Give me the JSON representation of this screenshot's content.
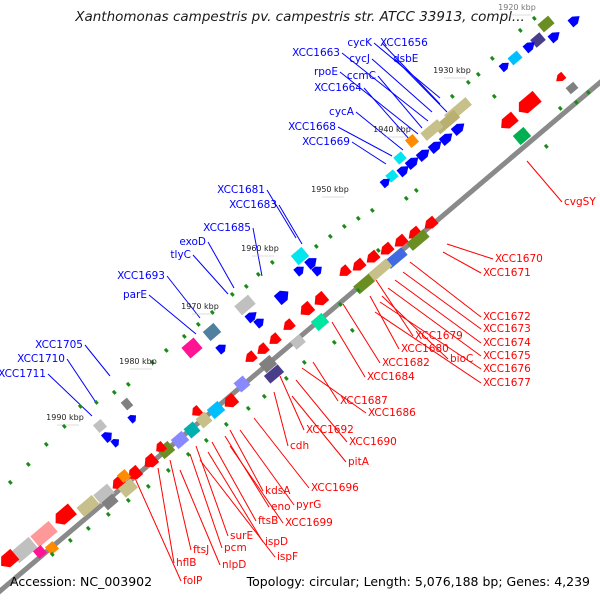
{
  "title": "Xanthomonas campestris pv. campestris str. ATCC 33913, compl...",
  "footer": {
    "accession": "Accession: NC_003902",
    "summary": "Topology: circular; Length: 5,076,188 bp; Genes: 4,239"
  },
  "colors": {
    "backbone": "#808080",
    "forward_label": "#0000ff",
    "reverse_label": "#ff0000",
    "forward_gene": "#0000ff",
    "reverse_gene": "#ff0000",
    "tick": "#1a8a1a"
  },
  "ticks": [
    "1920 kbp",
    "1930 kbp",
    "1940 kbp",
    "1950 kbp",
    "1960 kbp",
    "1970 kbp",
    "1980 kbp",
    "1990 kbp"
  ],
  "forward_labels": [
    "cycK",
    "XCC1656",
    "cycJ",
    "dsbE",
    "XCC1663",
    "ccmC",
    "rpoE",
    "XCC1664",
    "cycA",
    "XCC1668",
    "XCC1669",
    "XCC1681",
    "XCC1683",
    "XCC1685",
    "exoD",
    "tlyC",
    "XCC1693",
    "parE",
    "XCC1705",
    "XCC1710",
    "XCC1711"
  ],
  "reverse_labels": [
    "cvgSY",
    "XCC1670",
    "XCC1671",
    "XCC1672",
    "XCC1673",
    "XCC1674",
    "XCC1679",
    "XCC1675",
    "XCC1680",
    "bioC",
    "XCC1676",
    "XCC1682",
    "XCC1677",
    "XCC1684",
    "XCC1687",
    "XCC1686",
    "XCC1692",
    "XCC1690",
    "cdh",
    "pitA",
    "kdsA",
    "XCC1696",
    "eno",
    "pyrG",
    "ftsB",
    "XCC1699",
    "surE",
    "ispD",
    "pcm",
    "ftsJ",
    "ispF",
    "hflB",
    "nlpD",
    "folP"
  ]
}
